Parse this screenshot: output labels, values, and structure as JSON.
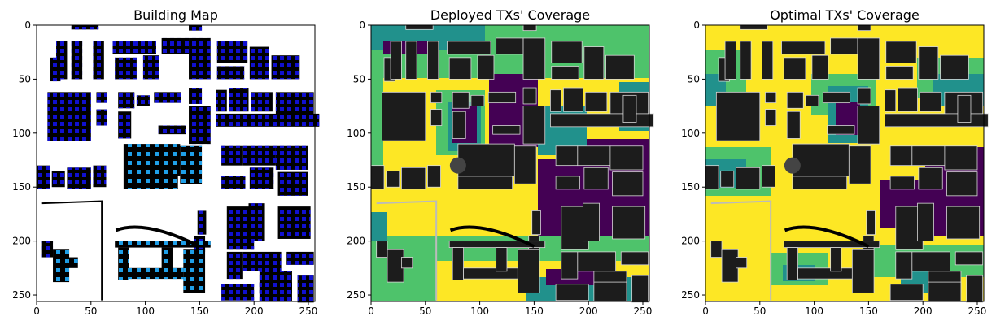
{
  "panels": [
    {
      "id": "building-map",
      "title": "Building Map",
      "kind": "buildings"
    },
    {
      "id": "deployed",
      "title": "Deployed TXs' Coverage",
      "kind": "coverage"
    },
    {
      "id": "optimal",
      "title": "Optimal TXs' Coverage",
      "kind": "coverage"
    }
  ],
  "axis": {
    "xticks": [
      0,
      50,
      100,
      150,
      200,
      250
    ],
    "yticks": [
      0,
      50,
      100,
      150,
      200,
      250
    ],
    "range": [
      0,
      256
    ],
    "y_inverted": true
  },
  "colors": {
    "building": "#000000",
    "tx_dark_blue": "#1010d0",
    "tx_light_blue": "#1f9fe8",
    "coverage_yellow": "#fde725",
    "coverage_green": "#4ec36b",
    "coverage_teal": "#21918c",
    "coverage_purple": "#440154",
    "building_gray": "#222222"
  }
}
